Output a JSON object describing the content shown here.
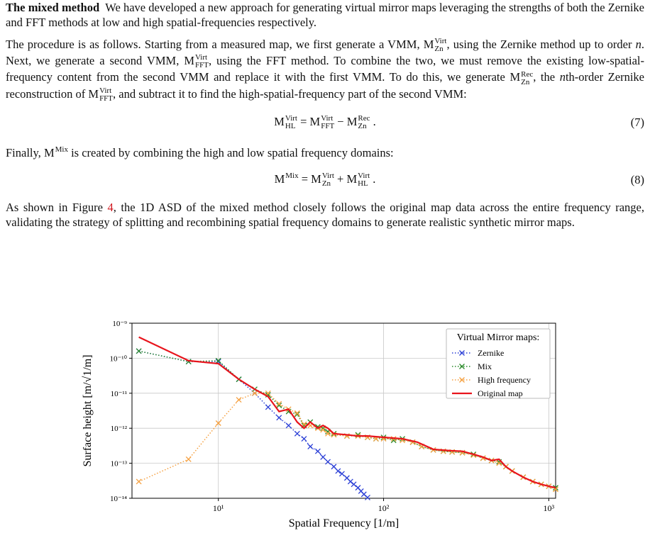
{
  "body": [
    {
      "runs": [
        {
          "b": "The mixed method"
        },
        "  We have developed a new approach for generating virtual mirror maps leveraging the strengths of both the Zernike and FFT methods at low and high spatial-frequencies respectively."
      ]
    },
    {
      "runs": [
        "The procedure is as follows. Starting from a measured map, we first generate a VMM, ",
        {
          "m": "M",
          "sup": "Virt",
          "sub": "Zn"
        },
        ", using the Zernike method up to order ",
        {
          "i": "n"
        },
        ". Next, we generate a second VMM, ",
        {
          "m": "M",
          "sup": "Virt",
          "sub": "FFT"
        },
        ", using the FFT method. To combine the two, we must remove the existing low-spatial-frequency content from the second VMM and replace it with the first VMM. To do this, we generate ",
        {
          "m": "M",
          "sup": "Rec",
          "sub": "Zn"
        },
        ", the ",
        {
          "i": "n"
        },
        "th-order Zernike reconstruction of ",
        {
          "m": "M",
          "sup": "Virt",
          "sub": "FFT"
        },
        ", and subtract it to find the high-spatial-frequency part of the second VMM:"
      ]
    },
    {
      "runs": [
        {
          "m": "M",
          "sup": "Virt",
          "sub": "HL"
        },
        " = ",
        {
          "m": "M",
          "sup": "Virt",
          "sub": "FFT"
        },
        " − ",
        {
          "m": "M",
          "sup": "Rec",
          "sub": "Zn"
        },
        " ."
      ],
      "number": "(7)"
    },
    {
      "runs": [
        "Finally, ",
        {
          "m": "M",
          "sup": "Mix"
        },
        " is created by combining the high and low spatial frequency domains:"
      ]
    },
    {
      "runs": [
        {
          "m": "M",
          "sup": "Mix"
        },
        " = ",
        {
          "m": "M",
          "sup": "Virt",
          "sub": "Zn"
        },
        " + ",
        {
          "m": "M",
          "sup": "Virt",
          "sub": "HL"
        },
        " ."
      ],
      "number": "(8)"
    },
    {
      "runs": [
        "As shown in Figure ",
        {
          "ref": "4"
        },
        ", the 1D ASD of the mixed method closely follows the original map data across the entire frequency range, validating the strategy of splitting and recombining spatial frequency domains to generate realistic synthetic mirror maps."
      ]
    }
  ],
  "chart_data": {
    "type": "line",
    "xlabel": "Spatial Frequency [1/m]",
    "ylabel": "Surface height [m/√1/m]",
    "xscale": "log",
    "yscale": "log",
    "grid": true,
    "legend": "upper right",
    "legend_title": "Virtual Mirror maps:",
    "xlim": [
      3,
      1100
    ],
    "ylim": [
      1e-14,
      1e-09
    ],
    "xticks": [
      {
        "value": 10,
        "label": "10¹"
      },
      {
        "value": 100,
        "label": "10²"
      },
      {
        "value": 1000,
        "label": "10³"
      }
    ],
    "yticks": [
      {
        "value": 1e-14,
        "label": "10⁻¹⁴"
      },
      {
        "value": 1e-13,
        "label": "10⁻¹³"
      },
      {
        "value": 1e-12,
        "label": "10⁻¹²"
      },
      {
        "value": 1e-11,
        "label": "10⁻¹¹"
      },
      {
        "value": 1e-10,
        "label": "10⁻¹⁰"
      },
      {
        "value": 1e-09,
        "label": "10⁻⁹"
      }
    ],
    "series": [
      {
        "name": "Zernike",
        "color": "#2b3fd6",
        "marker": "x",
        "linestyle": "dotted",
        "x": [
          3.3,
          6.6,
          10,
          13.3,
          16.6,
          20,
          23.3,
          26.6,
          30,
          33,
          36,
          40,
          43,
          46,
          50,
          53,
          56,
          60,
          63,
          66,
          70,
          73,
          76,
          80
        ],
        "values": [
          1.6e-10,
          8e-11,
          8e-11,
          2.5e-11,
          1e-11,
          4e-12,
          2e-12,
          1.2e-12,
          7e-13,
          5e-13,
          3e-13,
          2.2e-13,
          1.5e-13,
          1.1e-13,
          8e-14,
          6e-14,
          5e-14,
          3.8e-14,
          3e-14,
          2.5e-14,
          2e-14,
          1.6e-14,
          1.3e-14,
          1.05e-14
        ]
      },
      {
        "name": "Mix",
        "color": "#2a8a2a",
        "marker": "x",
        "linestyle": "dotted",
        "x": [
          3.3,
          6.6,
          10,
          13.3,
          16.6,
          20,
          23.3,
          26.6,
          30,
          33,
          36,
          40,
          43,
          46,
          50,
          60,
          70,
          80,
          90,
          100,
          115,
          130,
          150,
          170,
          200,
          230,
          260,
          300,
          350,
          400,
          450,
          500,
          550,
          600,
          700,
          800,
          900,
          1000,
          1100
        ],
        "values": [
          1.6e-10,
          8e-11,
          8.5e-11,
          2.5e-11,
          1.3e-11,
          9e-12,
          4.5e-12,
          3e-12,
          2.5e-12,
          1.2e-12,
          1.5e-12,
          1.1e-12,
          1e-12,
          8e-13,
          7e-13,
          6e-13,
          6.5e-13,
          5.5e-13,
          5e-13,
          5.5e-13,
          4.5e-13,
          5e-13,
          4e-13,
          3e-13,
          2.4e-13,
          2.2e-13,
          2.1e-13,
          2e-13,
          1.8e-13,
          1.4e-13,
          1.2e-13,
          1.1e-13,
          8e-14,
          6e-14,
          4e-14,
          3e-14,
          2.5e-14,
          2.2e-14,
          2e-14
        ]
      },
      {
        "name": "High frequency",
        "color": "#f5a040",
        "marker": "x",
        "linestyle": "dotted",
        "x": [
          3.3,
          6.6,
          10,
          13.3,
          16.6,
          20,
          23.3,
          26.6,
          30,
          33,
          36,
          40,
          43,
          46,
          50,
          60,
          70,
          80,
          90,
          100,
          115,
          130,
          150,
          170,
          200,
          230,
          260,
          300,
          350,
          400,
          450,
          500,
          550,
          600,
          700,
          800,
          900,
          1000,
          1100
        ],
        "values": [
          3e-14,
          1.3e-13,
          1.4e-12,
          6.5e-12,
          1e-11,
          1e-11,
          5e-12,
          3.5e-12,
          2.7e-12,
          1.3e-12,
          1.2e-12,
          1e-12,
          9e-13,
          7e-13,
          6.5e-13,
          6e-13,
          6e-13,
          5.5e-13,
          5e-13,
          5e-13,
          5e-13,
          4.5e-13,
          4e-13,
          3e-13,
          2.4e-13,
          2.2e-13,
          2.1e-13,
          2e-13,
          1.7e-13,
          1.4e-13,
          1.2e-13,
          1e-13,
          8e-14,
          6e-14,
          4e-14,
          3e-14,
          2.5e-14,
          2.2e-14,
          1.8e-14
        ]
      },
      {
        "name": "Original map",
        "color": "#e8141c",
        "marker": "none",
        "linestyle": "solid",
        "x": [
          3.3,
          6.6,
          10,
          13.3,
          16.6,
          20,
          23.3,
          26.6,
          30,
          33,
          36,
          40,
          43,
          46,
          50,
          60,
          70,
          80,
          100,
          130,
          160,
          200,
          250,
          300,
          350,
          400,
          450,
          500,
          550,
          600,
          700,
          800,
          900,
          1000,
          1100
        ],
        "values": [
          4e-10,
          8.5e-11,
          7e-11,
          2.5e-11,
          1.3e-11,
          8e-12,
          3e-12,
          3.5e-12,
          1.5e-12,
          1e-12,
          1.5e-12,
          1e-12,
          1.2e-12,
          1e-12,
          7e-13,
          6.5e-13,
          6e-13,
          6e-13,
          5.5e-13,
          5e-13,
          4e-13,
          2.5e-13,
          2.3e-13,
          2.2e-13,
          1.8e-13,
          1.5e-13,
          1.2e-13,
          1.3e-13,
          8e-14,
          6e-14,
          4e-14,
          3e-14,
          2.5e-14,
          2.2e-14,
          2e-14
        ]
      }
    ]
  }
}
